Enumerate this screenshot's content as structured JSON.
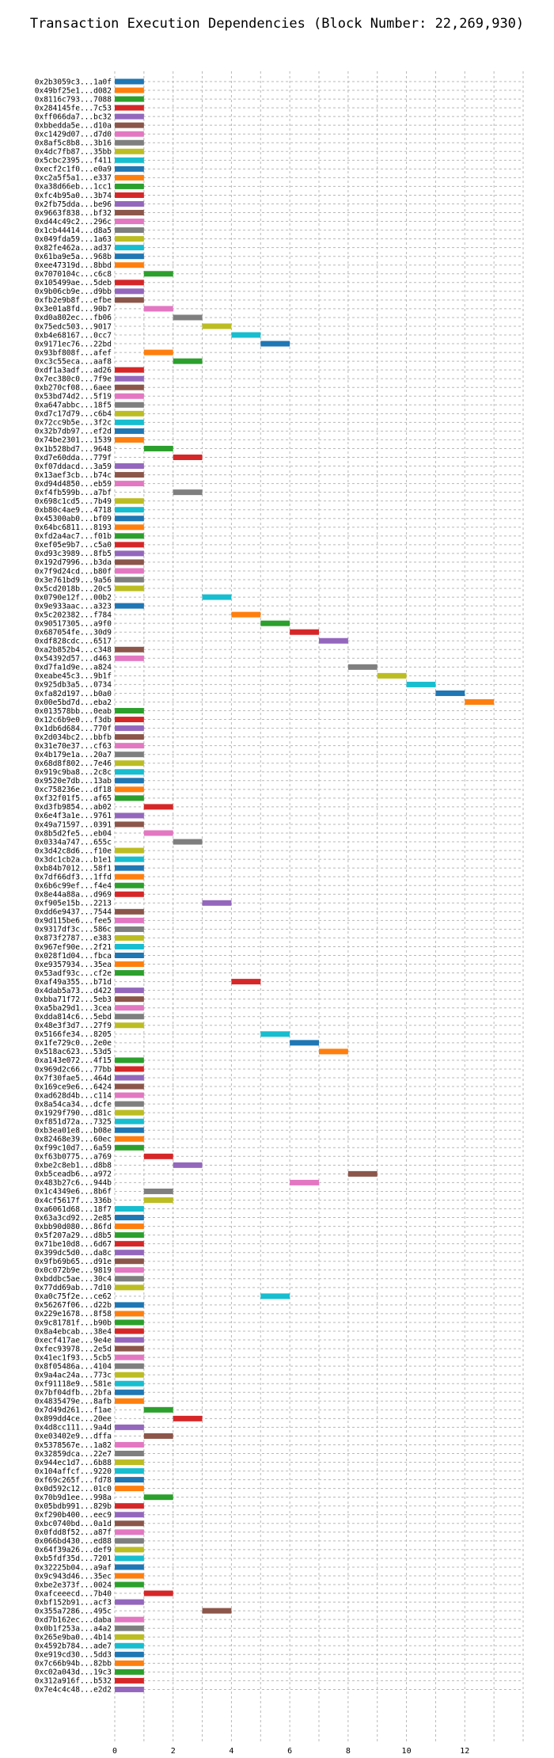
{
  "chart_data": {
    "type": "bar",
    "orientation": "horizontal-gantt",
    "title": "Transaction Execution Dependencies (Block Number: 22,269,930)",
    "xlabel": "",
    "ylabel": "",
    "xlim": [
      0,
      14
    ],
    "xticks": [
      0,
      2,
      4,
      6,
      8,
      10,
      12
    ],
    "grid": true,
    "palette": [
      "#1f77b4",
      "#ff7f0e",
      "#2ca02c",
      "#d62728",
      "#9467bd",
      "#8c564b",
      "#e377c2",
      "#7f7f7f",
      "#bcbd22",
      "#17becf"
    ],
    "transactions": [
      {
        "label": "0x2b3059c3...1a0f",
        "start": 0
      },
      {
        "label": "0x49bf25e1...d082",
        "start": 0
      },
      {
        "label": "0x8116c793...7088",
        "start": 0
      },
      {
        "label": "0x284145fe...7c53",
        "start": 0
      },
      {
        "label": "0xff066da7...bc32",
        "start": 0
      },
      {
        "label": "0xbbedda5e...d10a",
        "start": 0
      },
      {
        "label": "0xc1429d07...d7d0",
        "start": 0
      },
      {
        "label": "0x8af5c8b8...3b16",
        "start": 0
      },
      {
        "label": "0x4dc7fb87...35bb",
        "start": 0
      },
      {
        "label": "0x5cbc2395...f411",
        "start": 0
      },
      {
        "label": "0xecf2c1f0...e0a9",
        "start": 0
      },
      {
        "label": "0xc2a5f5a1...e337",
        "start": 0
      },
      {
        "label": "0xa38d66eb...1cc1",
        "start": 0
      },
      {
        "label": "0xfc4b95a0...3b74",
        "start": 0
      },
      {
        "label": "0x2fb75dda...be96",
        "start": 0
      },
      {
        "label": "0x9663f838...bf32",
        "start": 0
      },
      {
        "label": "0xd44c49c2...296c",
        "start": 0
      },
      {
        "label": "0x1cb44414...d8a5",
        "start": 0
      },
      {
        "label": "0x049fda59...1a63",
        "start": 0
      },
      {
        "label": "0x82fe462a...ad37",
        "start": 0
      },
      {
        "label": "0x61ba9e5a...968b",
        "start": 0
      },
      {
        "label": "0xee47319d...8bbd",
        "start": 0
      },
      {
        "label": "0x7070104c...c6c8",
        "start": 1
      },
      {
        "label": "0x105499ae...5deb",
        "start": 0
      },
      {
        "label": "0x9b06cb9e...d9bb",
        "start": 0
      },
      {
        "label": "0xfb2e9b8f...efbe",
        "start": 0
      },
      {
        "label": "0x3e01a8fd...90b7",
        "start": 1
      },
      {
        "label": "0xd0a802ec...fb06",
        "start": 2
      },
      {
        "label": "0x75edc503...9017",
        "start": 3
      },
      {
        "label": "0xb4e68167...0cc7",
        "start": 4
      },
      {
        "label": "0x9171ec76...22bd",
        "start": 5
      },
      {
        "label": "0x93bf808f...afef",
        "start": 1
      },
      {
        "label": "0xc3c55eca...aaf8",
        "start": 2
      },
      {
        "label": "0xdf1a3adf...ad26",
        "start": 0
      },
      {
        "label": "0x7ec380c0...7f9e",
        "start": 0
      },
      {
        "label": "0xb270cf08...6aee",
        "start": 0
      },
      {
        "label": "0x53bd74d2...5f19",
        "start": 0
      },
      {
        "label": "0xa647abbc...18f5",
        "start": 0
      },
      {
        "label": "0xd7c17d79...c6b4",
        "start": 0
      },
      {
        "label": "0x72cc9b5e...3f2c",
        "start": 0
      },
      {
        "label": "0x32b7db97...ef2d",
        "start": 0
      },
      {
        "label": "0x74be2301...1539",
        "start": 0
      },
      {
        "label": "0x1b528bd7...9648",
        "start": 1
      },
      {
        "label": "0xd7e60dda...779f",
        "start": 2
      },
      {
        "label": "0xf07ddacd...3a59",
        "start": 0
      },
      {
        "label": "0x13aef3cb...b74c",
        "start": 0
      },
      {
        "label": "0xd94d4850...eb59",
        "start": 0
      },
      {
        "label": "0xf4fb599b...a7bf",
        "start": 2
      },
      {
        "label": "0x698c1cd5...7b49",
        "start": 0
      },
      {
        "label": "0xb80c4ae9...4718",
        "start": 0
      },
      {
        "label": "0x45300ab0...bf09",
        "start": 0
      },
      {
        "label": "0x64bc6811...8193",
        "start": 0
      },
      {
        "label": "0xfd2a4ac7...f01b",
        "start": 0
      },
      {
        "label": "0xef05e9b7...c5a0",
        "start": 0
      },
      {
        "label": "0xd93c3989...8fb5",
        "start": 0
      },
      {
        "label": "0x192d7996...b3da",
        "start": 0
      },
      {
        "label": "0x7f9d24cd...b80f",
        "start": 0
      },
      {
        "label": "0x3e761bd9...9a56",
        "start": 0
      },
      {
        "label": "0x5cd2018b...20c5",
        "start": 0
      },
      {
        "label": "0x0790e12f...00b2",
        "start": 3
      },
      {
        "label": "0x9e933aac...a323",
        "start": 0
      },
      {
        "label": "0x5c202382...f784",
        "start": 4
      },
      {
        "label": "0x90517305...a9f0",
        "start": 5
      },
      {
        "label": "0x687054fe...30d9",
        "start": 6
      },
      {
        "label": "0xdf828cdc...6517",
        "start": 7
      },
      {
        "label": "0xa2b852b4...c348",
        "start": 0
      },
      {
        "label": "0x54392d57...d463",
        "start": 0
      },
      {
        "label": "0xd7fa1d9e...a824",
        "start": 8
      },
      {
        "label": "0xeabe45c3...9b1f",
        "start": 9
      },
      {
        "label": "0x925db3a5...0734",
        "start": 10
      },
      {
        "label": "0xfa82d197...b0a0",
        "start": 11
      },
      {
        "label": "0x00e5bd7d...eba2",
        "start": 12
      },
      {
        "label": "0x013578bb...0eab",
        "start": 0
      },
      {
        "label": "0x12c6b9e0...f3db",
        "start": 0
      },
      {
        "label": "0x1db6d684...770f",
        "start": 0
      },
      {
        "label": "0x2d034bc2...bbfb",
        "start": 0
      },
      {
        "label": "0x31e70e37...cf63",
        "start": 0
      },
      {
        "label": "0x4b179e1a...20a7",
        "start": 0
      },
      {
        "label": "0x68d8f802...7e46",
        "start": 0
      },
      {
        "label": "0x919c9ba8...2c8c",
        "start": 0
      },
      {
        "label": "0x9520e7db...13ab",
        "start": 0
      },
      {
        "label": "0xc758236e...df18",
        "start": 0
      },
      {
        "label": "0xf32f01f5...af65",
        "start": 0
      },
      {
        "label": "0xd3fb9854...ab02",
        "start": 1
      },
      {
        "label": "0x6e4f3a1e...9761",
        "start": 0
      },
      {
        "label": "0x49a71597...0391",
        "start": 0
      },
      {
        "label": "0x8b5d2fe5...eb04",
        "start": 1
      },
      {
        "label": "0x0334a747...655c",
        "start": 2
      },
      {
        "label": "0x3d42c8d6...f10e",
        "start": 0
      },
      {
        "label": "0x3dc1cb2a...b1e1",
        "start": 0
      },
      {
        "label": "0xb84b7012...58f1",
        "start": 0
      },
      {
        "label": "0x7df66df3...1ffd",
        "start": 0
      },
      {
        "label": "0x6b6c99ef...f4e4",
        "start": 0
      },
      {
        "label": "0x8e44a88a...d969",
        "start": 0
      },
      {
        "label": "0xf905e15b...2213",
        "start": 3
      },
      {
        "label": "0xdd6e9437...7544",
        "start": 0
      },
      {
        "label": "0x9d115be6...fee5",
        "start": 0
      },
      {
        "label": "0x9317df3c...586c",
        "start": 0
      },
      {
        "label": "0x873f2787...e383",
        "start": 0
      },
      {
        "label": "0x967ef90e...2f21",
        "start": 0
      },
      {
        "label": "0x028f1d04...fbca",
        "start": 0
      },
      {
        "label": "0xe9357934...35ea",
        "start": 0
      },
      {
        "label": "0x53adf93c...cf2e",
        "start": 0
      },
      {
        "label": "0xaf49a355...b71d",
        "start": 4
      },
      {
        "label": "0x4dab5a73...d422",
        "start": 0
      },
      {
        "label": "0xbba71f72...5eb3",
        "start": 0
      },
      {
        "label": "0xa5ba29d1...3cea",
        "start": 0
      },
      {
        "label": "0xdda814c6...5ebd",
        "start": 0
      },
      {
        "label": "0x48e3f3d7...27f9",
        "start": 0
      },
      {
        "label": "0x5166fe34...8205",
        "start": 5
      },
      {
        "label": "0x1fe729c0...2e0e",
        "start": 6
      },
      {
        "label": "0x518ac623...53d5",
        "start": 7
      },
      {
        "label": "0xa143e072...4f15",
        "start": 0
      },
      {
        "label": "0x969d2c66...77bb",
        "start": 0
      },
      {
        "label": "0x7f30fae5...464d",
        "start": 0
      },
      {
        "label": "0x169ce9e6...6424",
        "start": 0
      },
      {
        "label": "0xad628d4b...c114",
        "start": 0
      },
      {
        "label": "0x8a54ca34...dcfe",
        "start": 0
      },
      {
        "label": "0x1929f790...d81c",
        "start": 0
      },
      {
        "label": "0xf851d72a...7325",
        "start": 0
      },
      {
        "label": "0xb3ea01e8...b08e",
        "start": 0
      },
      {
        "label": "0x82468e39...60ec",
        "start": 0
      },
      {
        "label": "0xf99c10d7...6a59",
        "start": 0
      },
      {
        "label": "0xf63b0775...a769",
        "start": 1
      },
      {
        "label": "0xbe2c8eb1...d8b8",
        "start": 2
      },
      {
        "label": "0xb5ceadb6...a972",
        "start": 8
      },
      {
        "label": "0x483b27c6...944b",
        "start": 6
      },
      {
        "label": "0x1c4349e6...8b6f",
        "start": 1
      },
      {
        "label": "0x4cf5617f...336b",
        "start": 1
      },
      {
        "label": "0xa6061d68...18f7",
        "start": 0
      },
      {
        "label": "0x63a3cd92...2e85",
        "start": 0
      },
      {
        "label": "0xbb90d080...86fd",
        "start": 0
      },
      {
        "label": "0x5f207a29...d8b5",
        "start": 0
      },
      {
        "label": "0x71be10d8...6d67",
        "start": 0
      },
      {
        "label": "0x399dc5d0...da8c",
        "start": 0
      },
      {
        "label": "0x9fb69b65...d91e",
        "start": 0
      },
      {
        "label": "0x0c072b9e...9819",
        "start": 0
      },
      {
        "label": "0xbddbc5ae...30c4",
        "start": 0
      },
      {
        "label": "0x77dd69ab...7d10",
        "start": 0
      },
      {
        "label": "0xa0c75f2e...ce62",
        "start": 5
      },
      {
        "label": "0x56267f06...d22b",
        "start": 0
      },
      {
        "label": "0x229e1678...8f58",
        "start": 0
      },
      {
        "label": "0x9c81781f...b90b",
        "start": 0
      },
      {
        "label": "0x8a4ebcab...38e4",
        "start": 0
      },
      {
        "label": "0xecf417ae...9e4e",
        "start": 0
      },
      {
        "label": "0xfec93978...2e5d",
        "start": 0
      },
      {
        "label": "0x41ec1f93...5cb5",
        "start": 0
      },
      {
        "label": "0x8f05486a...4104",
        "start": 0
      },
      {
        "label": "0x9a4ac24a...773c",
        "start": 0
      },
      {
        "label": "0xf91118e9...581e",
        "start": 0
      },
      {
        "label": "0x7bf04dfb...2bfa",
        "start": 0
      },
      {
        "label": "0x4835479e...8afb",
        "start": 0
      },
      {
        "label": "0x7d49d261...f1ae",
        "start": 1
      },
      {
        "label": "0x899dd4ce...20ee",
        "start": 2
      },
      {
        "label": "0x4d8cc111...9a4d",
        "start": 0
      },
      {
        "label": "0xe03402e9...dffa",
        "start": 1
      },
      {
        "label": "0x5378567e...1a82",
        "start": 0
      },
      {
        "label": "0x32859dca...22e7",
        "start": 0
      },
      {
        "label": "0x944ec1d7...6b88",
        "start": 0
      },
      {
        "label": "0x104affcf...9220",
        "start": 0
      },
      {
        "label": "0xf69c265f...fd78",
        "start": 0
      },
      {
        "label": "0x0d592c12...01c0",
        "start": 0
      },
      {
        "label": "0x70b9d1ee...998a",
        "start": 1
      },
      {
        "label": "0x05bdb991...829b",
        "start": 0
      },
      {
        "label": "0xf290b400...eec9",
        "start": 0
      },
      {
        "label": "0xbc0740bd...0a1d",
        "start": 0
      },
      {
        "label": "0x0fdd8f52...a87f",
        "start": 0
      },
      {
        "label": "0x066bd430...ed88",
        "start": 0
      },
      {
        "label": "0x64f39a26...def9",
        "start": 0
      },
      {
        "label": "0xb5fdf35d...7201",
        "start": 0
      },
      {
        "label": "0x32225b04...a9af",
        "start": 0
      },
      {
        "label": "0x9c943d46...35ec",
        "start": 0
      },
      {
        "label": "0xbe2e373f...0024",
        "start": 0
      },
      {
        "label": "0xafceeecd...7b40",
        "start": 1
      },
      {
        "label": "0xbf152b91...acf3",
        "start": 0
      },
      {
        "label": "0x355a7286...495c",
        "start": 3
      },
      {
        "label": "0xd7b162ec...daba",
        "start": 0
      },
      {
        "label": "0x0b1f253a...a4a2",
        "start": 0
      },
      {
        "label": "0x265e9ba0...4b14",
        "start": 0
      },
      {
        "label": "0x4592b784...ade7",
        "start": 0
      },
      {
        "label": "0xe919cd30...5dd3",
        "start": 0
      },
      {
        "label": "0x7c66b94b...82bb",
        "start": 0
      },
      {
        "label": "0xc02a043d...19c3",
        "start": 0
      },
      {
        "label": "0x312a916f...b532",
        "start": 0
      },
      {
        "label": "0x7e4c4c48...e2d2",
        "start": 0
      }
    ],
    "bar_width": 1
  }
}
